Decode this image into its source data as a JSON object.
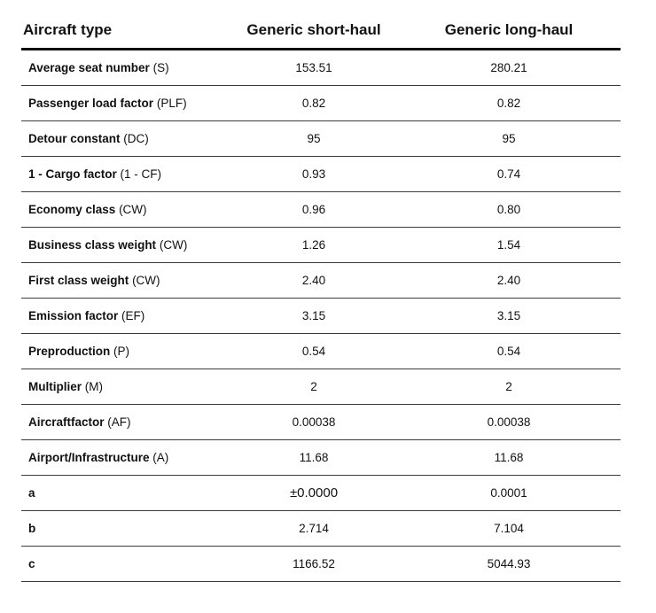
{
  "table": {
    "headers": [
      "Aircraft type",
      "Generic short-haul",
      "Generic long-haul"
    ],
    "rows": [
      {
        "name": "Average seat number",
        "abbr": "(S)",
        "short": "153.51",
        "long": "280.21"
      },
      {
        "name": "Passenger load factor",
        "abbr": "(PLF)",
        "short": "0.82",
        "long": "0.82"
      },
      {
        "name": "Detour constant",
        "abbr": "(DC)",
        "short": "95",
        "long": "95"
      },
      {
        "name": "1 - Cargo factor",
        "abbr": "(1 - CF)",
        "short": "0.93",
        "long": "0.74"
      },
      {
        "name": "Economy class",
        "abbr": "(CW)",
        "short": "0.96",
        "long": "0.80"
      },
      {
        "name": "Business class weight",
        "abbr": "(CW)",
        "short": "1.26",
        "long": "1.54"
      },
      {
        "name": "First class weight",
        "abbr": "(CW)",
        "short": "2.40",
        "long": "2.40"
      },
      {
        "name": "Emission factor",
        "abbr": "(EF)",
        "short": "3.15",
        "long": "3.15"
      },
      {
        "name": "Preproduction",
        "abbr": "(P)",
        "short": "0.54",
        "long": "0.54"
      },
      {
        "name": "Multiplier",
        "abbr": "(M)",
        "short": "2",
        "long": "2"
      },
      {
        "name": "Aircraftfactor",
        "abbr": "(AF)",
        "short": "0.00038",
        "long": "0.00038"
      },
      {
        "name": "Airport/Infrastructure",
        "abbr": "(A)",
        "short": "11.68",
        "long": "11.68"
      },
      {
        "name": "a",
        "abbr": "",
        "short": "±0.0000",
        "long": "0.0001"
      },
      {
        "name": "b",
        "abbr": "",
        "short": "2.714",
        "long": "7.104"
      },
      {
        "name": "c",
        "abbr": "",
        "short": "1166.52",
        "long": "5044.93"
      }
    ]
  }
}
